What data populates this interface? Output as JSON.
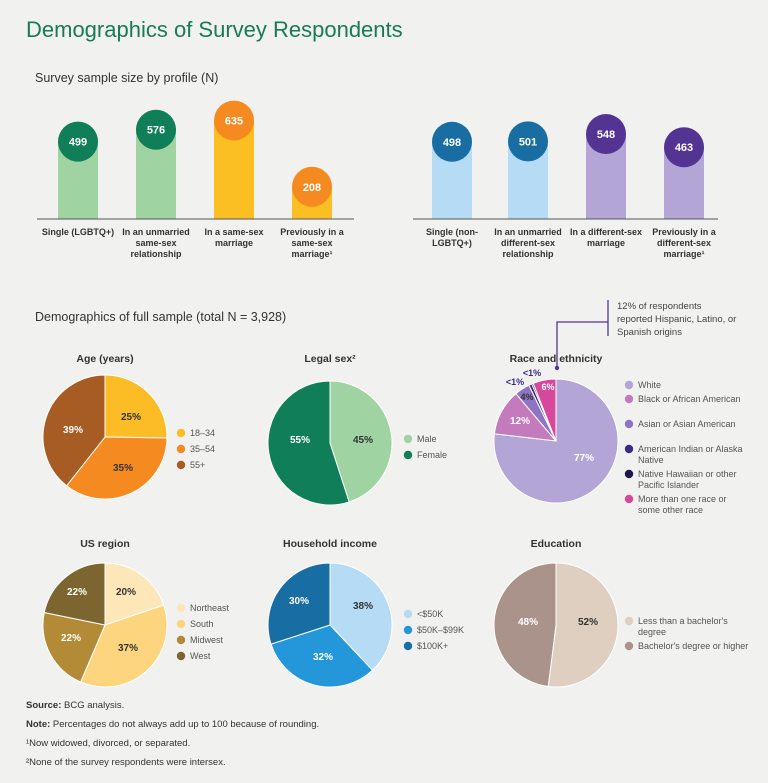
{
  "title": "Demographics of Survey Respondents",
  "sample_section_title": "Survey sample size by profile (N)",
  "demographics_section_title": "Demographics of full sample (total N = 3,928)",
  "hispanic_note": "12% of respondents reported Hispanic, Latino, or Spanish origins",
  "footer": {
    "source_label": "Source:",
    "source_text": "BCG analysis.",
    "note_label": "Note:",
    "note_text": "Percentages do not always add up to 100 because of rounding.",
    "footnote1": "¹Now widowed, divorced, or separated.",
    "footnote2": "²None of the survey respondents were intersex."
  },
  "chart_data": [
    {
      "type": "bar",
      "title": "Survey sample size by profile (N)",
      "group": "LGBTQ+",
      "categories": [
        "Single (LGBTQ+)",
        "In an unmarried same-sex relationship",
        "In a same-sex marriage",
        "Previously in a same-sex marriage¹"
      ],
      "values": [
        499,
        576,
        635,
        208
      ],
      "colors": [
        "#9fd3a1",
        "#9fd3a1",
        "#fbbf24",
        "#fbbf24"
      ],
      "circle_colors": [
        "#117e5a",
        "#117e5a",
        "#f58a20",
        "#f58a20"
      ],
      "ylim": [
        0,
        700
      ]
    },
    {
      "type": "bar",
      "title": "Survey sample size by profile (N)",
      "group": "Non-LGBTQ+",
      "categories": [
        "Single (non-LGBTQ+)",
        "In an unmarried different-sex relationship",
        "In a different-sex marriage",
        "Previously in a different-sex marriage¹"
      ],
      "values": [
        498,
        501,
        548,
        463
      ],
      "colors": [
        "#b5dcf4",
        "#b5dcf4",
        "#b3a5d6",
        "#b3a5d6"
      ],
      "circle_colors": [
        "#186ea3",
        "#186ea3",
        "#533493",
        "#533493"
      ],
      "ylim": [
        0,
        700
      ]
    },
    {
      "type": "pie",
      "title": "Age (years)",
      "labels": [
        "18–34",
        "35–54",
        "55+"
      ],
      "values": [
        25,
        35,
        39
      ],
      "colors": [
        "#fbbc25",
        "#f58a20",
        "#a75c23"
      ],
      "data_labels": [
        "25%",
        "35%",
        "39%"
      ]
    },
    {
      "type": "pie",
      "title": "Legal sex²",
      "labels": [
        "Male",
        "Female"
      ],
      "values": [
        45,
        55
      ],
      "colors": [
        "#9fd3a1",
        "#117e5a"
      ],
      "data_labels": [
        "45%",
        "55%"
      ]
    },
    {
      "type": "pie",
      "title": "Race and ethnicity",
      "labels": [
        "White",
        "Black or African American",
        "Asian or Asian American",
        "American Indian or Alaska Native",
        "Native Hawaiian or other Pacific Islander",
        "More than one race or some other race"
      ],
      "values": [
        77,
        12,
        4,
        0.8,
        0.4,
        6
      ],
      "colors": [
        "#b3a5d6",
        "#c47bbd",
        "#8f73c4",
        "#3d2a85",
        "#1d1748",
        "#d6489c"
      ],
      "data_labels": [
        "77%",
        "12%",
        "4%",
        "<1%",
        "<1%",
        "6%"
      ]
    },
    {
      "type": "pie",
      "title": "US region",
      "labels": [
        "Northeast",
        "South",
        "Midwest",
        "West"
      ],
      "values": [
        20,
        37,
        22,
        22
      ],
      "colors": [
        "#fde7b8",
        "#fdd57e",
        "#b38a35",
        "#7d6530"
      ],
      "data_labels": [
        "20%",
        "37%",
        "22%",
        "22%"
      ]
    },
    {
      "type": "pie",
      "title": "Household income",
      "labels": [
        "<$50K",
        "$50K–$99K",
        "$100K+"
      ],
      "values": [
        38,
        32,
        30
      ],
      "colors": [
        "#b5dcf4",
        "#2496da",
        "#186ea3"
      ],
      "data_labels": [
        "38%",
        "32%",
        "30%"
      ]
    },
    {
      "type": "pie",
      "title": "Education",
      "labels": [
        "Less than a bachelor's degree",
        "Bachelor's degree or higher"
      ],
      "values": [
        52,
        48
      ],
      "colors": [
        "#dfcfc0",
        "#aa938a"
      ],
      "data_labels": [
        "52%",
        "48%"
      ]
    }
  ]
}
